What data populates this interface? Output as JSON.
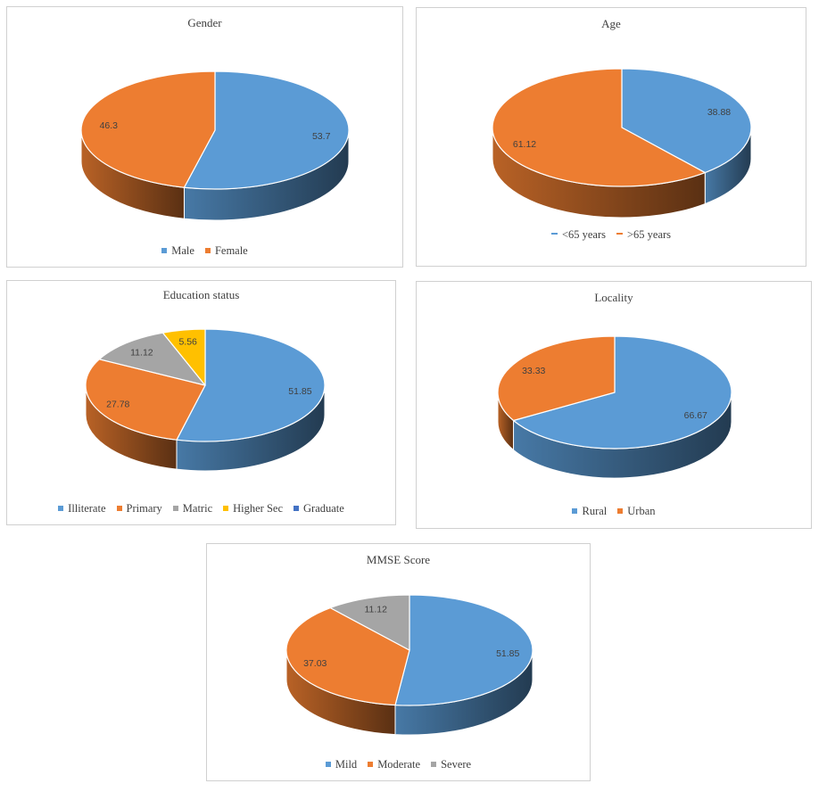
{
  "chart_data": [
    {
      "type": "pie",
      "title": "Gender",
      "categories": [
        "Male",
        "Female"
      ],
      "values": [
        53.7,
        46.3
      ],
      "labels": [
        "53.7",
        "46.3"
      ],
      "colors": [
        "#5B9BD5",
        "#ED7D31"
      ],
      "legend_position": "bottom",
      "start_angle_deg": 0
    },
    {
      "type": "pie",
      "title": "Age",
      "categories": [
        "<65 years",
        ">65 years"
      ],
      "values": [
        38.88,
        61.12
      ],
      "labels": [
        "38.88",
        "61.12"
      ],
      "colors": [
        "#5B9BD5",
        "#ED7D31"
      ],
      "legend_style": "line",
      "legend_position": "bottom",
      "start_angle_deg": 0
    },
    {
      "type": "pie",
      "title": "Education status",
      "categories": [
        "Illiterate",
        "Primary",
        "Matric",
        "Higher Sec",
        "Graduate"
      ],
      "values": [
        51.85,
        27.78,
        11.12,
        5.56,
        0
      ],
      "labels": [
        "51.85",
        "27.78",
        "11.12",
        "5.56",
        ""
      ],
      "colors": [
        "#5B9BD5",
        "#ED7D31",
        "#A5A5A5",
        "#FFC000",
        "#4472C4"
      ],
      "legend_position": "bottom",
      "start_angle_deg": 0
    },
    {
      "type": "pie",
      "title": "Locality",
      "categories": [
        "Rural",
        "Urban"
      ],
      "values": [
        66.67,
        33.33
      ],
      "labels": [
        "66.67",
        "33.33"
      ],
      "colors": [
        "#5B9BD5",
        "#ED7D31"
      ],
      "legend_position": "bottom",
      "start_angle_deg": 0
    },
    {
      "type": "pie",
      "title": "MMSE Score",
      "categories": [
        "Mild",
        "Moderate",
        "Severe"
      ],
      "values": [
        51.85,
        37.03,
        11.12
      ],
      "labels": [
        "51.85",
        "37.03",
        "11.12"
      ],
      "colors": [
        "#5B9BD5",
        "#ED7D31",
        "#A5A5A5"
      ],
      "legend_position": "bottom",
      "start_angle_deg": 0
    }
  ]
}
